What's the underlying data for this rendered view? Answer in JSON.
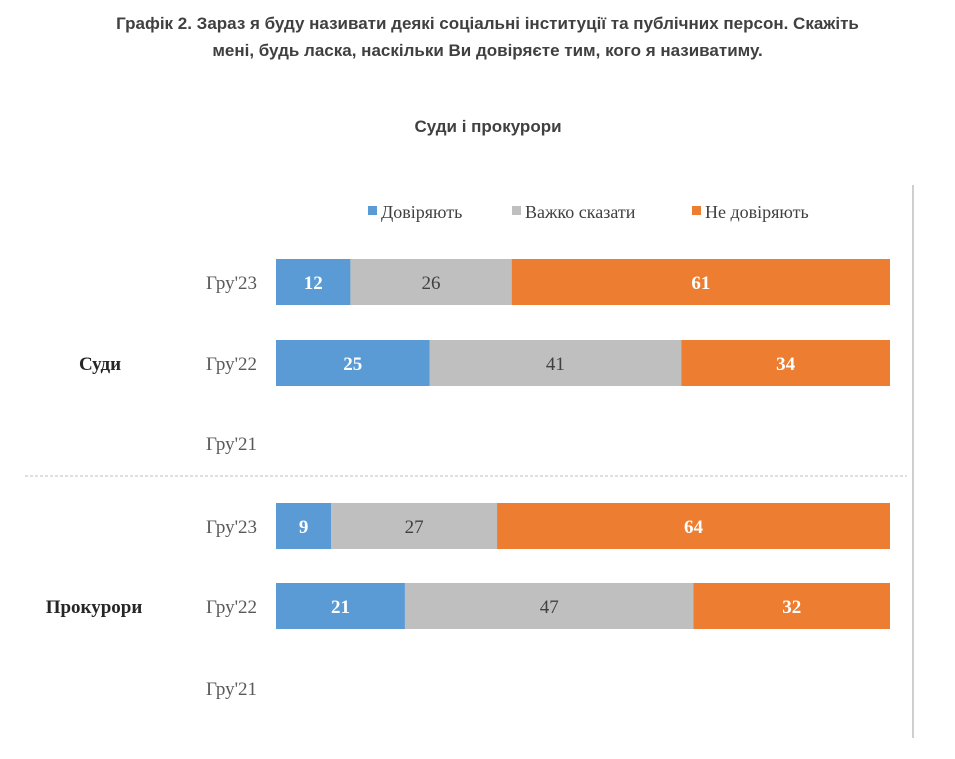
{
  "title_lines": [
    "Графік 2. Зараз я буду називати деякі соціальні інституції та публічних персон. Скажіть",
    "мені, будь ласка, наскільки Ви довіряєте тим, кого я називатиму."
  ],
  "chart_data": {
    "type": "bar",
    "orientation": "horizontal",
    "stacked": true,
    "title": "Суди і прокурори",
    "legend_position": "top",
    "groups": [
      {
        "name": "Суди",
        "categories": [
          "Гру'23",
          "Гру'22",
          "Гру'21"
        ]
      },
      {
        "name": "Прокурори",
        "categories": [
          "Гру'23",
          "Гру'22",
          "Гру'21"
        ]
      }
    ],
    "series": [
      {
        "name": "Довіряють",
        "color": "#5B9BD5",
        "label_color": "#ffffff",
        "values": [
          [
            12,
            25,
            null
          ],
          [
            9,
            21,
            null
          ]
        ]
      },
      {
        "name": "Важко сказати",
        "color": "#BFBFBF",
        "label_color": "#404040",
        "values": [
          [
            26,
            41,
            null
          ],
          [
            27,
            47,
            null
          ]
        ]
      },
      {
        "name": "Не  довіряють",
        "color": "#ED7D31",
        "label_color": "#ffffff",
        "values": [
          [
            61,
            34,
            null
          ],
          [
            64,
            32,
            null
          ]
        ]
      }
    ]
  }
}
